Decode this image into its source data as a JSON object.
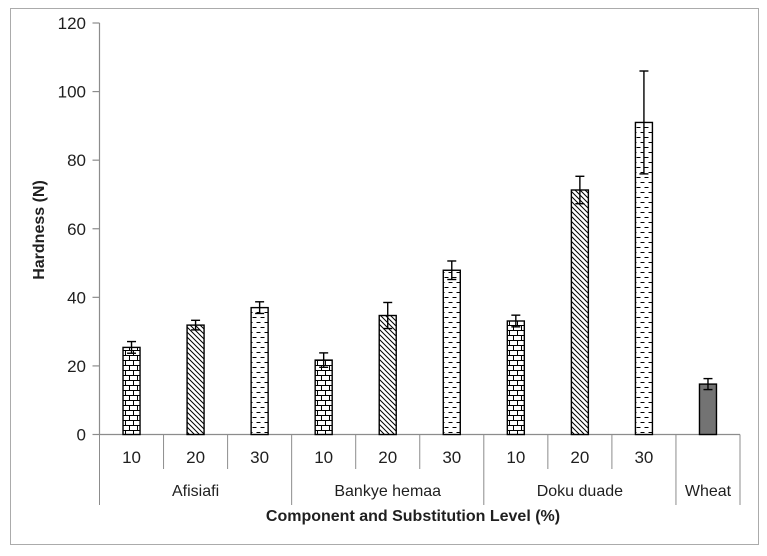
{
  "chart_data": {
    "type": "bar",
    "title": "",
    "ylabel": "Hardness (N)",
    "xlabel": "Component and Substitution Level (%)",
    "ylim": [
      0,
      120
    ],
    "y_ticks": [
      0,
      20,
      40,
      60,
      80,
      100,
      120
    ],
    "grid": false,
    "legend": "none",
    "error_bars": true,
    "groups": [
      {
        "label": "Afisiafi",
        "bars": [
          {
            "level": "10",
            "value": 25.4,
            "error": 1.7,
            "pattern": "brick"
          },
          {
            "level": "20",
            "value": 31.9,
            "error": 1.4,
            "pattern": "diagonal"
          },
          {
            "level": "30",
            "value": 37.0,
            "error": 1.7,
            "pattern": "dash"
          }
        ]
      },
      {
        "label": "Bankye hemaa",
        "bars": [
          {
            "level": "10",
            "value": 21.7,
            "error": 2.1,
            "pattern": "brick"
          },
          {
            "level": "20",
            "value": 34.7,
            "error": 3.8,
            "pattern": "diagonal"
          },
          {
            "level": "30",
            "value": 47.9,
            "error": 2.7,
            "pattern": "dash"
          }
        ]
      },
      {
        "label": "Doku duade",
        "bars": [
          {
            "level": "10",
            "value": 33.1,
            "error": 1.7,
            "pattern": "brick"
          },
          {
            "level": "20",
            "value": 71.3,
            "error": 4.0,
            "pattern": "diagonal"
          },
          {
            "level": "30",
            "value": 91.0,
            "error": 15.0,
            "pattern": "dash"
          }
        ]
      },
      {
        "label": "Wheat",
        "bars": [
          {
            "level": "",
            "value": 14.7,
            "error": 1.6,
            "pattern": "solid"
          }
        ]
      }
    ],
    "colors": {
      "axis": "#8c8c8c",
      "bar_outline": "#000000",
      "pattern_stroke": "#000000",
      "solid_fill": "#737373",
      "frame_border": "#ababab",
      "text": "#1f1f1f",
      "background": "#ffffff"
    }
  }
}
